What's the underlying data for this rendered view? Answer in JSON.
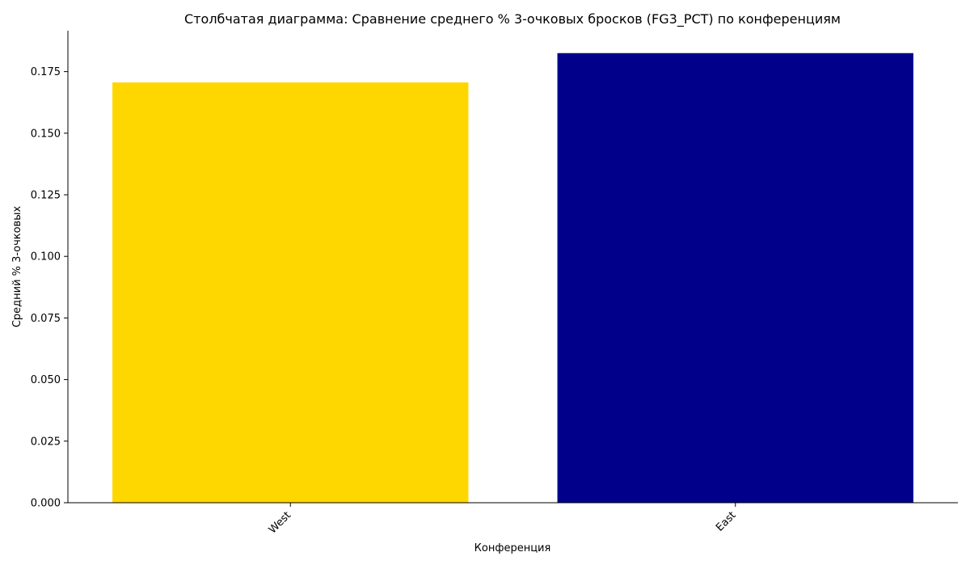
{
  "chart_data": {
    "type": "bar",
    "title": "Столбчатая диаграмма: Сравнение среднего % 3-очковых бросков (FG3_PCT) по конференциям",
    "xlabel": "Конференция",
    "ylabel": "Средний % 3-очковых",
    "categories": [
      "West",
      "East"
    ],
    "values": [
      0.1706,
      0.1825
    ],
    "colors": [
      "#FFD700",
      "#00008B"
    ],
    "ylim": [
      0,
      0.1916
    ],
    "yticks": [
      0.0,
      0.025,
      0.05,
      0.075,
      0.1,
      0.125,
      0.15,
      0.175
    ],
    "ytick_labels": [
      "0.000",
      "0.025",
      "0.050",
      "0.075",
      "0.100",
      "0.125",
      "0.150",
      "0.175"
    ],
    "grid": false,
    "legend": "none"
  }
}
